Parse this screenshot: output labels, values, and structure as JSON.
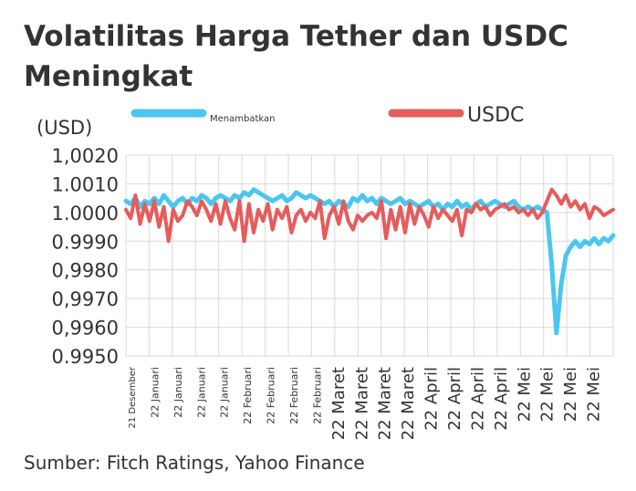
{
  "title": "Volatilitas Harga Tether dan USDC Meningkat",
  "source": "Sumber: Fitch Ratings, Yahoo Finance",
  "chart_data": {
    "type": "line",
    "title": "Volatilitas Harga Tether dan USDC Meningkat",
    "ylabel": "(USD)",
    "ylim": [
      0.995,
      1.002
    ],
    "yticks": [
      0.995,
      0.996,
      0.997,
      0.998,
      0.999,
      1.0,
      1.001,
      1.002
    ],
    "ytick_labels": [
      "0.9950",
      "0,9960",
      "0,9970",
      "0,9980",
      "0.9990",
      "1.0000",
      "1.0010",
      "1,0020"
    ],
    "xtick_labels": [
      "21 Desember",
      "22 Januari",
      "22 Januari",
      "22 Januari",
      "22 Januari",
      "22 Februari",
      "22 Februari",
      "22 Februari",
      "22 Februari",
      "22 Maret",
      "22 Maret",
      "22 Maret",
      "22 Maret",
      "22 April",
      "22 April",
      "22 April",
      "22 April",
      "22 Mei",
      "22 Mei",
      "22 Mei",
      "22 Mei"
    ],
    "grid": true,
    "legend_placement": "top",
    "series": [
      {
        "name": "Menambatkan",
        "color": "#4cc6ee",
        "values": [
          1.0004,
          1.0003,
          1.0005,
          1.0002,
          1.0004,
          1.0003,
          1.0005,
          1.0003,
          1.0006,
          1.0004,
          1.0002,
          1.0004,
          1.0005,
          1.0003,
          1.0005,
          1.0004,
          1.0006,
          1.0005,
          1.0003,
          1.0005,
          1.0006,
          1.0005,
          1.0004,
          1.0006,
          1.0005,
          1.0007,
          1.0006,
          1.0008,
          1.0007,
          1.0006,
          1.0005,
          1.0004,
          1.0005,
          1.0006,
          1.0004,
          1.0005,
          1.0007,
          1.0006,
          1.0005,
          1.0006,
          1.0005,
          1.0004,
          1.0003,
          1.0004,
          1.0002,
          1.0004,
          1.0003,
          1.0002,
          1.0005,
          1.0004,
          1.0006,
          1.0004,
          1.0005,
          1.0003,
          1.0005,
          1.0004,
          1.0003,
          1.0004,
          1.0005,
          1.0003,
          1.0004,
          1.0003,
          1.0002,
          1.0003,
          1.0004,
          1.0002,
          1.0003,
          1.0001,
          1.0003,
          1.0002,
          1.0004,
          1.0002,
          1.0003,
          1.0001,
          1.0003,
          1.0004,
          1.0002,
          1.0003,
          1.0004,
          1.0003,
          1.0002,
          1.0003,
          1.0004,
          1.0002,
          1.0001,
          1.0002,
          1.0001,
          1.0002,
          1.0001,
          1.0,
          0.9982,
          0.9958,
          0.9975,
          0.9985,
          0.9988,
          0.999,
          0.9988,
          0.999,
          0.9989,
          0.9991,
          0.9989,
          0.9991,
          0.999,
          0.9992
        ]
      },
      {
        "name": "USDC",
        "color": "#e65c5c",
        "values": [
          1.0001,
          0.9998,
          1.0006,
          0.9996,
          1.0003,
          0.9997,
          1.0004,
          0.9995,
          1.0002,
          0.999,
          1.0001,
          0.9997,
          0.9999,
          1.0004,
          1.0002,
          0.9999,
          1.0004,
          1.0001,
          0.9997,
          1.0003,
          0.9996,
          1.0004,
          0.9998,
          0.9994,
          1.0004,
          0.999,
          1.0003,
          0.9993,
          1.0001,
          0.9997,
          1.0003,
          0.9994,
          1.0001,
          0.9998,
          1.0002,
          0.9993,
          0.9999,
          1.0001,
          0.9997,
          1.0,
          0.9998,
          1.0004,
          0.9991,
          0.9999,
          1.0002,
          0.9996,
          1.0004,
          0.9997,
          0.9994,
          0.9999,
          0.9997,
          0.9999,
          1.0,
          0.9998,
          1.0004,
          0.9991,
          1.0001,
          0.9994,
          1.0002,
          0.9993,
          1.0003,
          0.9996,
          1.0002,
          0.9999,
          0.9995,
          1.0002,
          0.9998,
          1.0001,
          0.9999,
          0.9997,
          1.0001,
          0.9992,
          1.0001,
          1.0,
          1.0003,
          1.0001,
          1.0002,
          0.9999,
          1.0001,
          1.0002,
          1.0003,
          1.0001,
          1.0002,
          1.0,
          1.0001,
          0.9999,
          1.0001,
          0.9998,
          1.0,
          1.0004,
          1.0008,
          1.0006,
          1.0003,
          1.0006,
          1.0002,
          1.0004,
          1.0001,
          1.0003,
          0.9998,
          1.0002,
          1.0001,
          0.9999,
          1.0,
          1.0001
        ]
      }
    ]
  }
}
